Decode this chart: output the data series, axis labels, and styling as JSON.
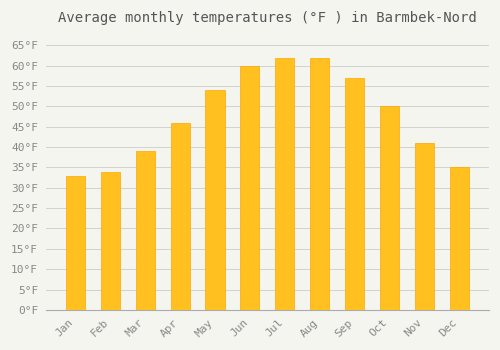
{
  "title": "Average monthly temperatures (°F ) in Barmbek-Nord",
  "months": [
    "Jan",
    "Feb",
    "Mar",
    "Apr",
    "May",
    "Jun",
    "Jul",
    "Aug",
    "Sep",
    "Oct",
    "Nov",
    "Dec"
  ],
  "values": [
    33,
    34,
    39,
    46,
    54,
    60,
    62,
    62,
    57,
    50,
    41,
    35
  ],
  "bar_color_face": "#FFC020",
  "bar_color_edge": "#FFA500",
  "background_color": "#F5F5F0",
  "plot_bg_color": "#F5F5F0",
  "grid_color": "#CCCCCC",
  "title_fontsize": 10,
  "tick_fontsize": 8,
  "ylim": [
    0,
    68
  ],
  "yticks": [
    0,
    5,
    10,
    15,
    20,
    25,
    30,
    35,
    40,
    45,
    50,
    55,
    60,
    65
  ],
  "bar_width": 0.55,
  "title_color": "#555555",
  "tick_color": "#888888"
}
